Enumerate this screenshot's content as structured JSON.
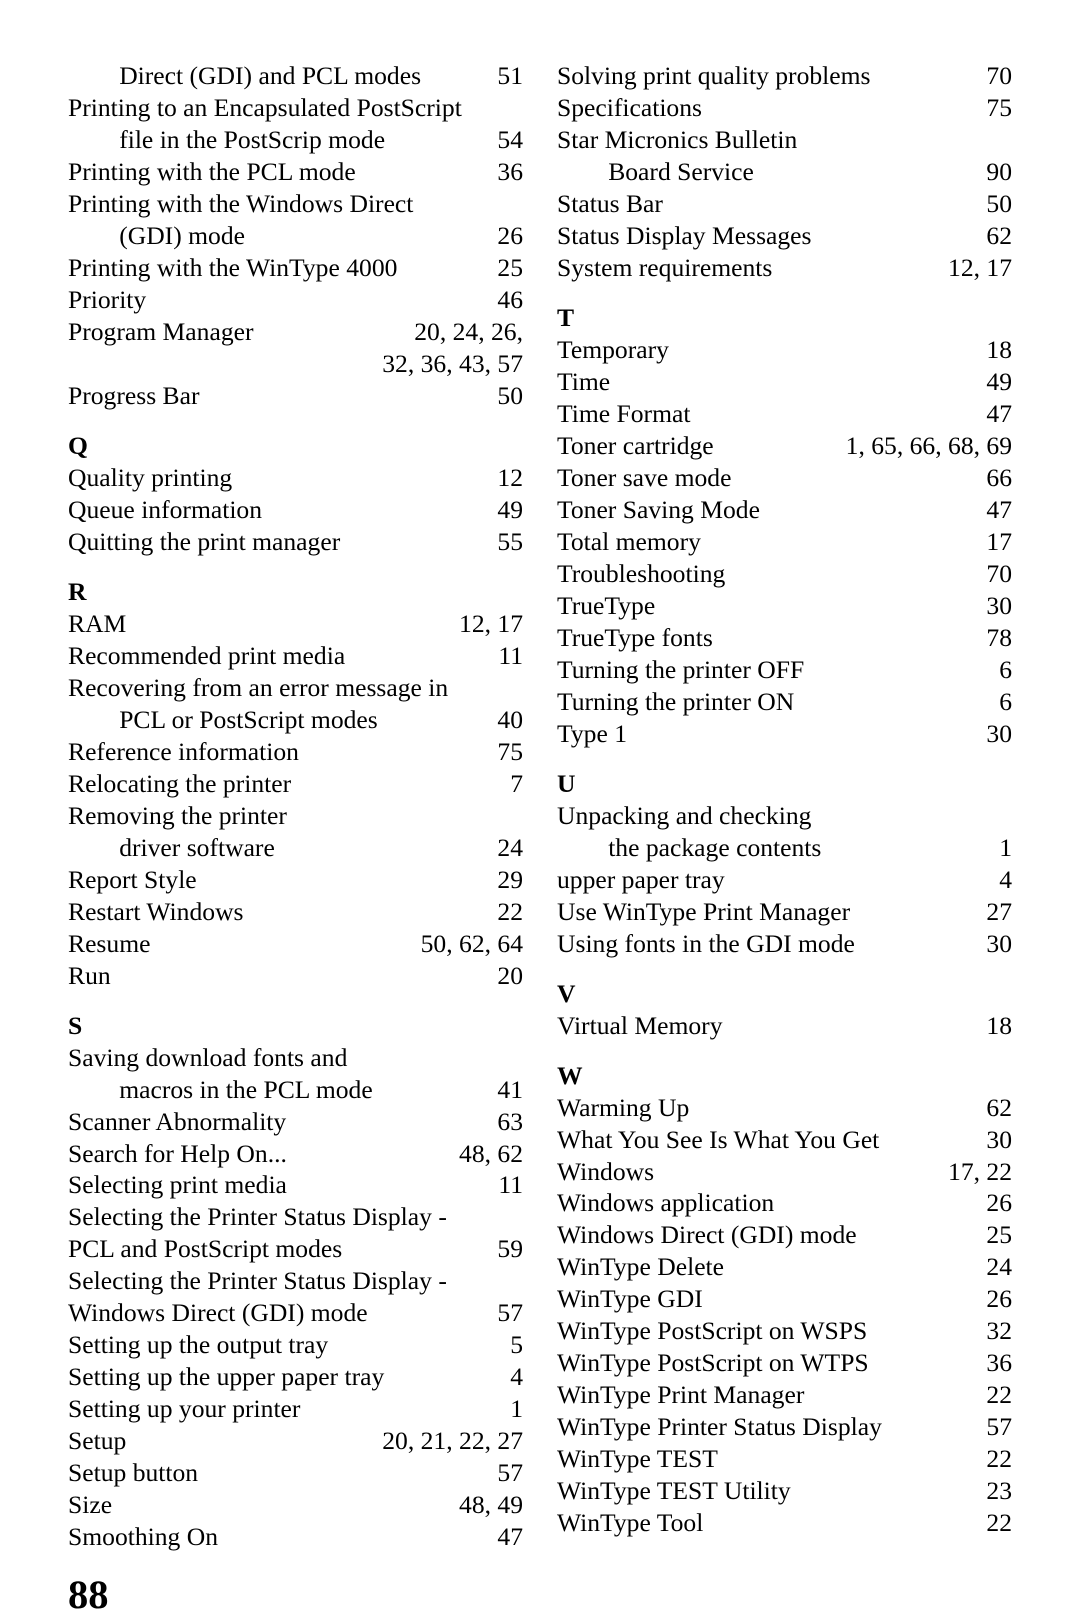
{
  "pageNumber": "88",
  "left": [
    {
      "type": "entry",
      "term": "        Direct (GDI) and PCL modes",
      "page": "51"
    },
    {
      "type": "entry",
      "term": "Printing to an Encapsulated PostScript",
      "page": ""
    },
    {
      "type": "entry",
      "term": "        file in the PostScrip mode",
      "page": "54"
    },
    {
      "type": "entry",
      "term": "Printing with the PCL mode",
      "page": "36"
    },
    {
      "type": "entry",
      "term": "Printing with the Windows Direct",
      "page": ""
    },
    {
      "type": "entry",
      "term": "        (GDI) mode",
      "page": "26"
    },
    {
      "type": "entry",
      "term": "Printing with the WinType 4000",
      "page": "25"
    },
    {
      "type": "entry",
      "term": "Priority",
      "page": "46"
    },
    {
      "type": "entry",
      "term": "Program Manager",
      "page": "20, 24, 26,"
    },
    {
      "type": "cont",
      "text": "32, 36, 43, 57"
    },
    {
      "type": "entry",
      "term": "Progress Bar",
      "page": "50"
    },
    {
      "type": "heading",
      "text": "Q"
    },
    {
      "type": "entry",
      "term": "Quality printing",
      "page": "12"
    },
    {
      "type": "entry",
      "term": "Queue information",
      "page": "49"
    },
    {
      "type": "entry",
      "term": "Quitting the print manager",
      "page": "55"
    },
    {
      "type": "heading",
      "text": "R"
    },
    {
      "type": "entry",
      "term": "RAM",
      "page": "12, 17"
    },
    {
      "type": "entry",
      "term": "Recommended print media",
      "page": "11"
    },
    {
      "type": "entry",
      "term": "Recovering from an error message in",
      "page": ""
    },
    {
      "type": "entry",
      "term": "        PCL or PostScript modes",
      "page": "40"
    },
    {
      "type": "entry",
      "term": "Reference information",
      "page": "75"
    },
    {
      "type": "entry",
      "term": "Relocating the printer",
      "page": "7"
    },
    {
      "type": "entry",
      "term": "Removing the printer",
      "page": ""
    },
    {
      "type": "entry",
      "term": "        driver software",
      "page": "24"
    },
    {
      "type": "entry",
      "term": "Report Style",
      "page": "29"
    },
    {
      "type": "entry",
      "term": "Restart Windows",
      "page": "22"
    },
    {
      "type": "entry",
      "term": "Resume",
      "page": "50, 62, 64"
    },
    {
      "type": "entry",
      "term": "Run",
      "page": "20"
    },
    {
      "type": "heading",
      "text": "S"
    },
    {
      "type": "entry",
      "term": "Saving download fonts and",
      "page": ""
    },
    {
      "type": "entry",
      "term": "        macros in the PCL mode",
      "page": "41"
    },
    {
      "type": "entry",
      "term": "Scanner Abnormality",
      "page": "63"
    },
    {
      "type": "entry",
      "term": "Search for Help On...",
      "page": "48, 62"
    },
    {
      "type": "entry",
      "term": "Selecting print media",
      "page": "11"
    },
    {
      "type": "entry",
      "term": "Selecting the Printer Status Display -",
      "page": ""
    },
    {
      "type": "entry",
      "term": "PCL and PostScript modes",
      "page": "59"
    },
    {
      "type": "entry",
      "term": "Selecting the Printer Status Display -",
      "page": ""
    },
    {
      "type": "entry",
      "term": "Windows Direct (GDI) mode",
      "page": "57"
    },
    {
      "type": "entry",
      "term": "Setting up the output tray",
      "page": "5"
    },
    {
      "type": "entry",
      "term": "Setting up the upper paper tray",
      "page": "4"
    },
    {
      "type": "entry",
      "term": "Setting up your printer",
      "page": "1"
    },
    {
      "type": "entry",
      "term": "Setup",
      "page": "20, 21, 22, 27"
    },
    {
      "type": "entry",
      "term": "Setup button",
      "page": "57"
    },
    {
      "type": "entry",
      "term": "Size",
      "page": "48, 49"
    },
    {
      "type": "entry",
      "term": "Smoothing On",
      "page": "47"
    }
  ],
  "right": [
    {
      "type": "entry",
      "term": "Solving print quality problems",
      "page": "70"
    },
    {
      "type": "entry",
      "term": "Specifications",
      "page": "75"
    },
    {
      "type": "entry",
      "term": "Star Micronics Bulletin",
      "page": ""
    },
    {
      "type": "entry",
      "term": "        Board Service",
      "page": "90"
    },
    {
      "type": "entry",
      "term": "Status Bar",
      "page": "50"
    },
    {
      "type": "entry",
      "term": "Status Display Messages",
      "page": "62"
    },
    {
      "type": "entry",
      "term": "System requirements",
      "page": "12, 17"
    },
    {
      "type": "heading",
      "text": "T"
    },
    {
      "type": "entry",
      "term": "Temporary",
      "page": "18"
    },
    {
      "type": "entry",
      "term": "Time",
      "page": "49"
    },
    {
      "type": "entry",
      "term": "Time Format",
      "page": "47"
    },
    {
      "type": "entry",
      "term": "Toner cartridge",
      "page": "1, 65, 66, 68, 69"
    },
    {
      "type": "entry",
      "term": "Toner save mode",
      "page": "66"
    },
    {
      "type": "entry",
      "term": "Toner Saving Mode",
      "page": "47"
    },
    {
      "type": "entry",
      "term": "Total memory",
      "page": "17"
    },
    {
      "type": "entry",
      "term": "Troubleshooting",
      "page": "70"
    },
    {
      "type": "entry",
      "term": "TrueType",
      "page": "30"
    },
    {
      "type": "entry",
      "term": "TrueType fonts",
      "page": "78"
    },
    {
      "type": "entry",
      "term": "Turning the printer OFF",
      "page": "6"
    },
    {
      "type": "entry",
      "term": "Turning the printer ON",
      "page": "6"
    },
    {
      "type": "entry",
      "term": "Type 1",
      "page": "30"
    },
    {
      "type": "heading",
      "text": "U"
    },
    {
      "type": "entry",
      "term": "Unpacking and checking",
      "page": ""
    },
    {
      "type": "entry",
      "term": "        the package contents",
      "page": "1"
    },
    {
      "type": "entry",
      "term": "upper paper tray",
      "page": "4"
    },
    {
      "type": "entry",
      "term": "Use WinType Print Manager",
      "page": "27"
    },
    {
      "type": "entry",
      "term": "Using fonts in the GDI mode",
      "page": "30"
    },
    {
      "type": "heading",
      "text": "V"
    },
    {
      "type": "entry",
      "term": "Virtual Memory",
      "page": "18"
    },
    {
      "type": "heading",
      "text": "W"
    },
    {
      "type": "entry",
      "term": "Warming Up",
      "page": "62"
    },
    {
      "type": "entry",
      "term": "What You See Is What You Get",
      "page": "30"
    },
    {
      "type": "entry",
      "term": "Windows",
      "page": "17, 22"
    },
    {
      "type": "entry",
      "term": "Windows application",
      "page": "26"
    },
    {
      "type": "entry",
      "term": "Windows Direct (GDI) mode",
      "page": "25"
    },
    {
      "type": "entry",
      "term": "WinType Delete",
      "page": "24"
    },
    {
      "type": "entry",
      "term": "WinType GDI",
      "page": "26"
    },
    {
      "type": "entry",
      "term": "WinType PostScript on WSPS",
      "page": "32"
    },
    {
      "type": "entry",
      "term": "WinType PostScript on WTPS",
      "page": "36"
    },
    {
      "type": "entry",
      "term": "WinType Print Manager",
      "page": "22"
    },
    {
      "type": "entry",
      "term": "WinType Printer Status Display",
      "page": "57"
    },
    {
      "type": "entry",
      "term": "WinType TEST",
      "page": "22"
    },
    {
      "type": "entry",
      "term": "WinType TEST Utility",
      "page": "23"
    },
    {
      "type": "entry",
      "term": "WinType Tool",
      "page": "22"
    }
  ]
}
